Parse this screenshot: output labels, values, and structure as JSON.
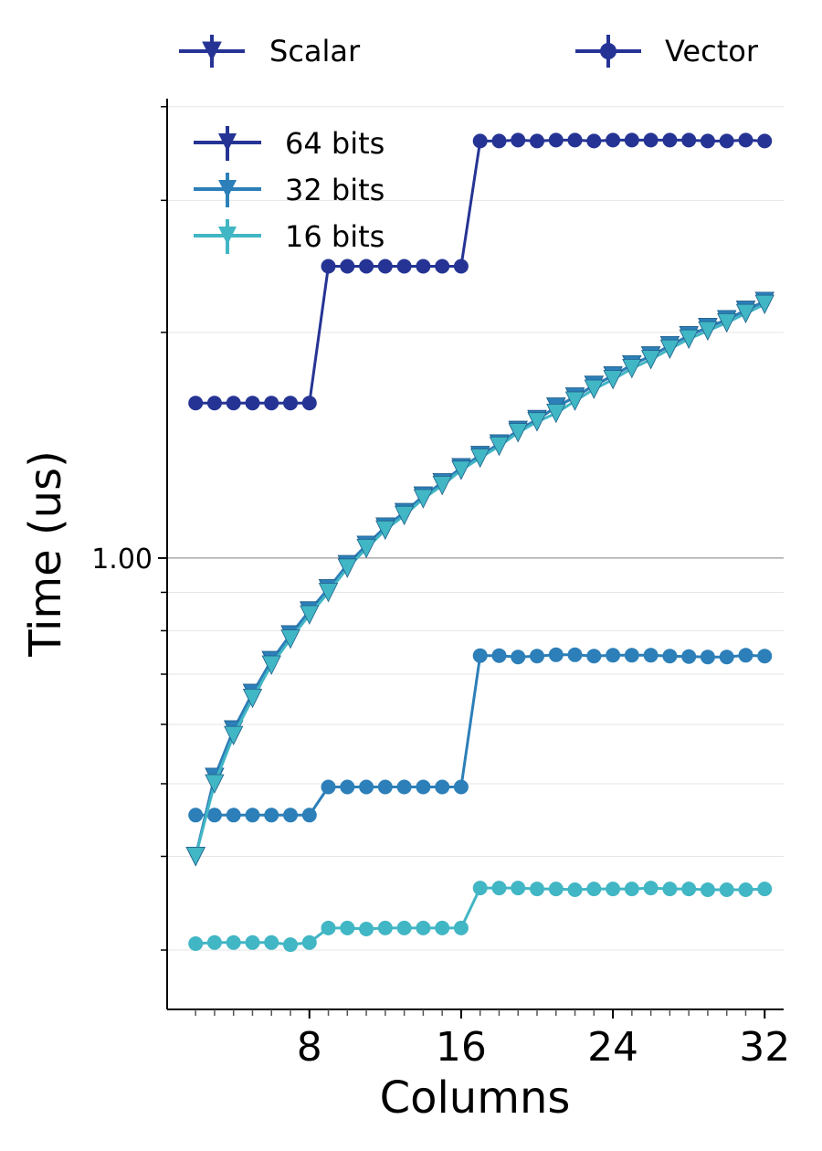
{
  "chart_data": {
    "type": "line",
    "xlabel": "Columns",
    "ylabel": "Time (us)",
    "y_scale": "log",
    "xlim": [
      0.5,
      33
    ],
    "ylim": [
      0.25,
      4.1
    ],
    "x_ticks": [
      8,
      16,
      24,
      32
    ],
    "x_tick_labels": [
      "8",
      "16",
      "24",
      "32"
    ],
    "y_tick_major": [
      1.0
    ],
    "y_tick_major_labels": [
      "1.00"
    ],
    "grid": "horizontal",
    "kind_legend": [
      {
        "label": "Scalar",
        "marker": "triangle-down"
      },
      {
        "label": "Vector",
        "marker": "circle"
      }
    ],
    "width_legend": [
      {
        "label": "64 bits",
        "color": "#253494"
      },
      {
        "label": "32 bits",
        "color": "#2c7fb8"
      },
      {
        "label": "16 bits",
        "color": "#41b6c4"
      }
    ],
    "x": [
      2,
      3,
      4,
      5,
      6,
      7,
      8,
      9,
      10,
      11,
      12,
      13,
      14,
      15,
      16,
      17,
      18,
      19,
      20,
      21,
      22,
      23,
      24,
      25,
      26,
      27,
      28,
      29,
      30,
      31,
      32
    ],
    "series": [
      {
        "width": "64 bits",
        "kind": "Scalar",
        "color": "#253494",
        "values": [
          0.4,
          0.51,
          0.59,
          0.66,
          0.73,
          0.79,
          0.85,
          0.91,
          0.98,
          1.04,
          1.1,
          1.15,
          1.21,
          1.26,
          1.32,
          1.37,
          1.42,
          1.48,
          1.53,
          1.59,
          1.64,
          1.7,
          1.75,
          1.81,
          1.86,
          1.92,
          1.98,
          2.03,
          2.08,
          2.14,
          2.2
        ]
      },
      {
        "width": "32 bits",
        "kind": "Scalar",
        "color": "#2c7fb8",
        "values": [
          0.4,
          0.51,
          0.59,
          0.66,
          0.73,
          0.79,
          0.85,
          0.91,
          0.98,
          1.04,
          1.1,
          1.15,
          1.21,
          1.26,
          1.32,
          1.37,
          1.42,
          1.48,
          1.53,
          1.59,
          1.64,
          1.7,
          1.75,
          1.81,
          1.86,
          1.92,
          1.98,
          2.03,
          2.08,
          2.14,
          2.2
        ]
      },
      {
        "width": "16 bits",
        "kind": "Scalar",
        "color": "#41b6c4",
        "values": [
          0.4,
          0.5,
          0.58,
          0.65,
          0.72,
          0.78,
          0.84,
          0.9,
          0.97,
          1.03,
          1.09,
          1.14,
          1.2,
          1.25,
          1.31,
          1.36,
          1.41,
          1.47,
          1.52,
          1.56,
          1.62,
          1.68,
          1.73,
          1.79,
          1.84,
          1.9,
          1.96,
          2.01,
          2.06,
          2.12,
          2.18
        ]
      },
      {
        "width": "64 bits",
        "kind": "Vector",
        "color": "#253494",
        "values": [
          1.61,
          1.61,
          1.61,
          1.61,
          1.61,
          1.61,
          1.61,
          2.45,
          2.45,
          2.45,
          2.45,
          2.45,
          2.45,
          2.45,
          2.45,
          3.6,
          3.6,
          3.61,
          3.6,
          3.61,
          3.61,
          3.6,
          3.61,
          3.61,
          3.61,
          3.61,
          3.61,
          3.6,
          3.6,
          3.61,
          3.6
        ]
      },
      {
        "width": "32 bits",
        "kind": "Vector",
        "color": "#2c7fb8",
        "values": [
          0.454,
          0.454,
          0.454,
          0.454,
          0.454,
          0.454,
          0.454,
          0.495,
          0.495,
          0.495,
          0.495,
          0.495,
          0.495,
          0.495,
          0.495,
          0.741,
          0.741,
          0.738,
          0.74,
          0.743,
          0.743,
          0.74,
          0.742,
          0.742,
          0.742,
          0.74,
          0.739,
          0.738,
          0.738,
          0.742,
          0.74
        ]
      },
      {
        "width": "16 bits",
        "kind": "Vector",
        "color": "#41b6c4",
        "values": [
          0.306,
          0.307,
          0.307,
          0.307,
          0.307,
          0.305,
          0.307,
          0.321,
          0.321,
          0.32,
          0.321,
          0.321,
          0.321,
          0.321,
          0.321,
          0.363,
          0.363,
          0.363,
          0.362,
          0.362,
          0.361,
          0.362,
          0.362,
          0.362,
          0.363,
          0.362,
          0.362,
          0.361,
          0.361,
          0.361,
          0.362
        ]
      }
    ]
  }
}
